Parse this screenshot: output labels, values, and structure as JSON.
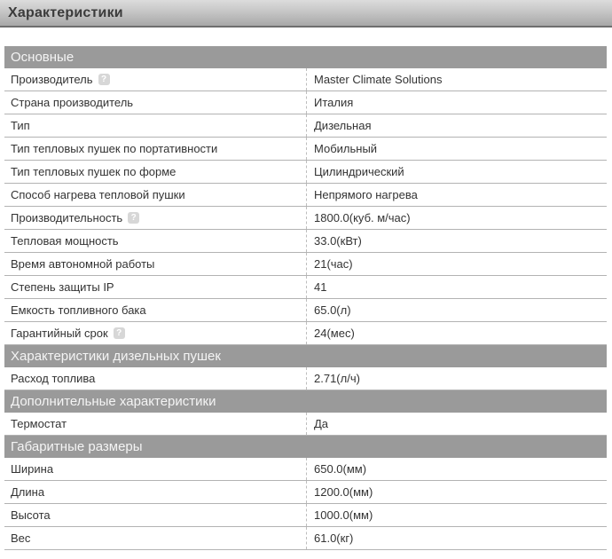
{
  "page": {
    "title": "Характеристики"
  },
  "help_icon_glyph": "?",
  "colors": {
    "section_band_bg": "#9a9a9a",
    "section_band_text": "#f4f4f4",
    "row_border": "#b3b3b3",
    "divider_dashed": "#bdbdbd",
    "titlebar_border": "#6e6e6e",
    "row_text": "#333333"
  },
  "sections": [
    {
      "title": "Основные",
      "rows": [
        {
          "label": "Производитель",
          "value": "Master Climate Solutions",
          "has_help": true
        },
        {
          "label": "Страна производитель",
          "value": "Италия",
          "has_help": false
        },
        {
          "label": "Тип",
          "value": "Дизельная",
          "has_help": false
        },
        {
          "label": "Тип тепловых пушек по портативности",
          "value": "Мобильный",
          "has_help": false
        },
        {
          "label": "Тип тепловых пушек по форме",
          "value": "Цилиндрический",
          "has_help": false
        },
        {
          "label": "Способ нагрева тепловой пушки",
          "value": "Непрямого нагрева",
          "has_help": false
        },
        {
          "label": "Производительность",
          "value": "1800.0(куб. м/час)",
          "has_help": true
        },
        {
          "label": "Тепловая мощность",
          "value": "33.0(кВт)",
          "has_help": false
        },
        {
          "label": "Время автономной работы",
          "value": "21(час)",
          "has_help": false
        },
        {
          "label": "Степень защиты IP",
          "value": "41",
          "has_help": false
        },
        {
          "label": "Емкость топливного бака",
          "value": "65.0(л)",
          "has_help": false
        },
        {
          "label": "Гарантийный срок",
          "value": "24(мес)",
          "has_help": true
        }
      ]
    },
    {
      "title": "Характеристики дизельных пушек",
      "rows": [
        {
          "label": "Расход топлива",
          "value": "2.71(л/ч)",
          "has_help": false
        }
      ]
    },
    {
      "title": "Дополнительные характеристики",
      "rows": [
        {
          "label": "Термостат",
          "value": "Да",
          "has_help": false
        }
      ]
    },
    {
      "title": "Габаритные размеры",
      "rows": [
        {
          "label": "Ширина",
          "value": "650.0(мм)",
          "has_help": false
        },
        {
          "label": "Длина",
          "value": "1200.0(мм)",
          "has_help": false
        },
        {
          "label": "Высота",
          "value": "1000.0(мм)",
          "has_help": false
        },
        {
          "label": "Вес",
          "value": "61.0(кг)",
          "has_help": false
        }
      ]
    }
  ]
}
